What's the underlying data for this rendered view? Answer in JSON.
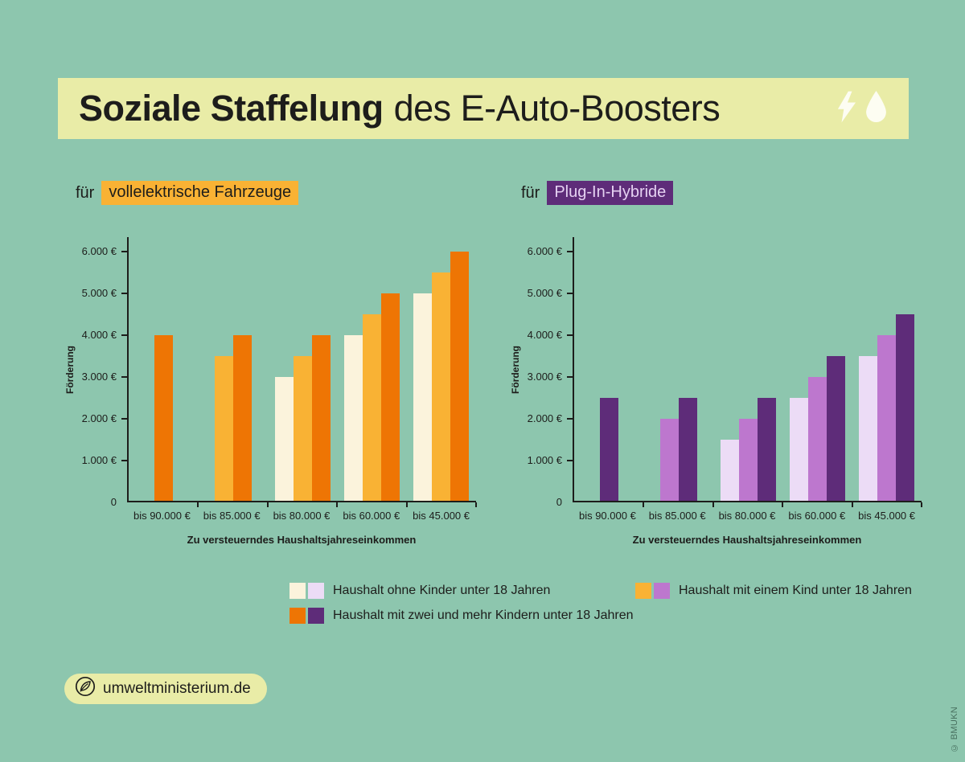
{
  "page": {
    "background": "#8dc6ae",
    "band_color": "#e9eca7",
    "text_color": "#1d1d1b"
  },
  "title": {
    "bold": "Soziale Staffelung",
    "rest": "des E-Auto-Boosters",
    "icons": [
      "lightning-icon",
      "droplet-icon"
    ]
  },
  "chart_data": [
    {
      "type": "bar",
      "title_prefix": "für",
      "title_tag": "vollelektrische Fahrzeuge",
      "tag_bg": "#f9b234",
      "tag_color": "#1d1d1b",
      "ylabel": "Förderung",
      "xlabel": "Zu versteuerndes Haushaltsjahreseinkommen",
      "ymax": 6000,
      "ylim": [
        0,
        6000
      ],
      "grid": false,
      "yticks": [
        {
          "value": 0,
          "label": "0"
        },
        {
          "value": 1000,
          "label": "1.000 €"
        },
        {
          "value": 2000,
          "label": "2.000 €"
        },
        {
          "value": 3000,
          "label": "3.000 €"
        },
        {
          "value": 4000,
          "label": "4.000 €"
        },
        {
          "value": 5000,
          "label": "5.000 €"
        },
        {
          "value": 6000,
          "label": "6.000 €"
        }
      ],
      "categories": [
        "bis 90.000 €",
        "bis 85.000 €",
        "bis 80.000 €",
        "bis 60.000 €",
        "bis  45.000 €"
      ],
      "series": [
        {
          "name": "Haushalt ohne Kinder unter 18 Jahren",
          "color": "#fbf3dc",
          "values": [
            null,
            null,
            3000,
            4000,
            5000
          ]
        },
        {
          "name": "Haushalt mit einem Kind unter 18 Jahren",
          "color": "#f9b234",
          "values": [
            null,
            3500,
            3500,
            4500,
            5500
          ]
        },
        {
          "name": "Haushalt mit zwei und mehr Kindern unter 18 Jahren",
          "color": "#ee7504",
          "values": [
            4000,
            4000,
            4000,
            5000,
            6000
          ]
        }
      ]
    },
    {
      "type": "bar",
      "title_prefix": "für",
      "title_tag": "Plug-In-Hybride",
      "tag_bg": "#5e2c79",
      "tag_color": "#e5d1f2",
      "ylabel": "Förderung",
      "xlabel": "Zu versteuerndes Haushaltsjahreseinkommen",
      "ymax": 6000,
      "ylim": [
        0,
        6000
      ],
      "grid": false,
      "yticks": [
        {
          "value": 0,
          "label": "0"
        },
        {
          "value": 1000,
          "label": "1.000 €"
        },
        {
          "value": 2000,
          "label": "2.000 €"
        },
        {
          "value": 3000,
          "label": "3.000 €"
        },
        {
          "value": 4000,
          "label": "4.000 €"
        },
        {
          "value": 5000,
          "label": "5.000 €"
        },
        {
          "value": 6000,
          "label": "6.000 €"
        }
      ],
      "categories": [
        "bis 90.000 €",
        "bis 85.000 €",
        "bis 80.000 €",
        "bis 60.000 €",
        "bis  45.000 €"
      ],
      "series": [
        {
          "name": "Haushalt ohne Kinder unter 18 Jahren",
          "color": "#ecdcf6",
          "values": [
            null,
            null,
            1500,
            2500,
            3500
          ]
        },
        {
          "name": "Haushalt mit einem Kind unter 18 Jahren",
          "color": "#bd77ce",
          "values": [
            null,
            2000,
            2000,
            3000,
            4000
          ]
        },
        {
          "name": "Haushalt mit zwei und mehr Kindern unter 18 Jahren",
          "color": "#5e2c79",
          "values": [
            2500,
            2500,
            2500,
            3500,
            4500
          ]
        }
      ]
    }
  ],
  "legend": {
    "position": "bottom",
    "items": [
      {
        "swatches": [
          "#fbf3dc",
          "#ecdcf6"
        ],
        "label": "Haushalt ohne Kinder unter 18 Jahren"
      },
      {
        "swatches": [
          "#f9b234",
          "#bd77ce"
        ],
        "label": "Haushalt mit einem Kind unter 18 Jahren"
      },
      {
        "swatches": [
          "#ee7504",
          "#5e2c79"
        ],
        "label": "Haushalt mit zwei und mehr Kindern unter 18 Jahren"
      }
    ]
  },
  "footer": {
    "badge_label": "umweltministerium.de",
    "badge_icon": "leaf-icon"
  },
  "credit": "© BMUKN"
}
